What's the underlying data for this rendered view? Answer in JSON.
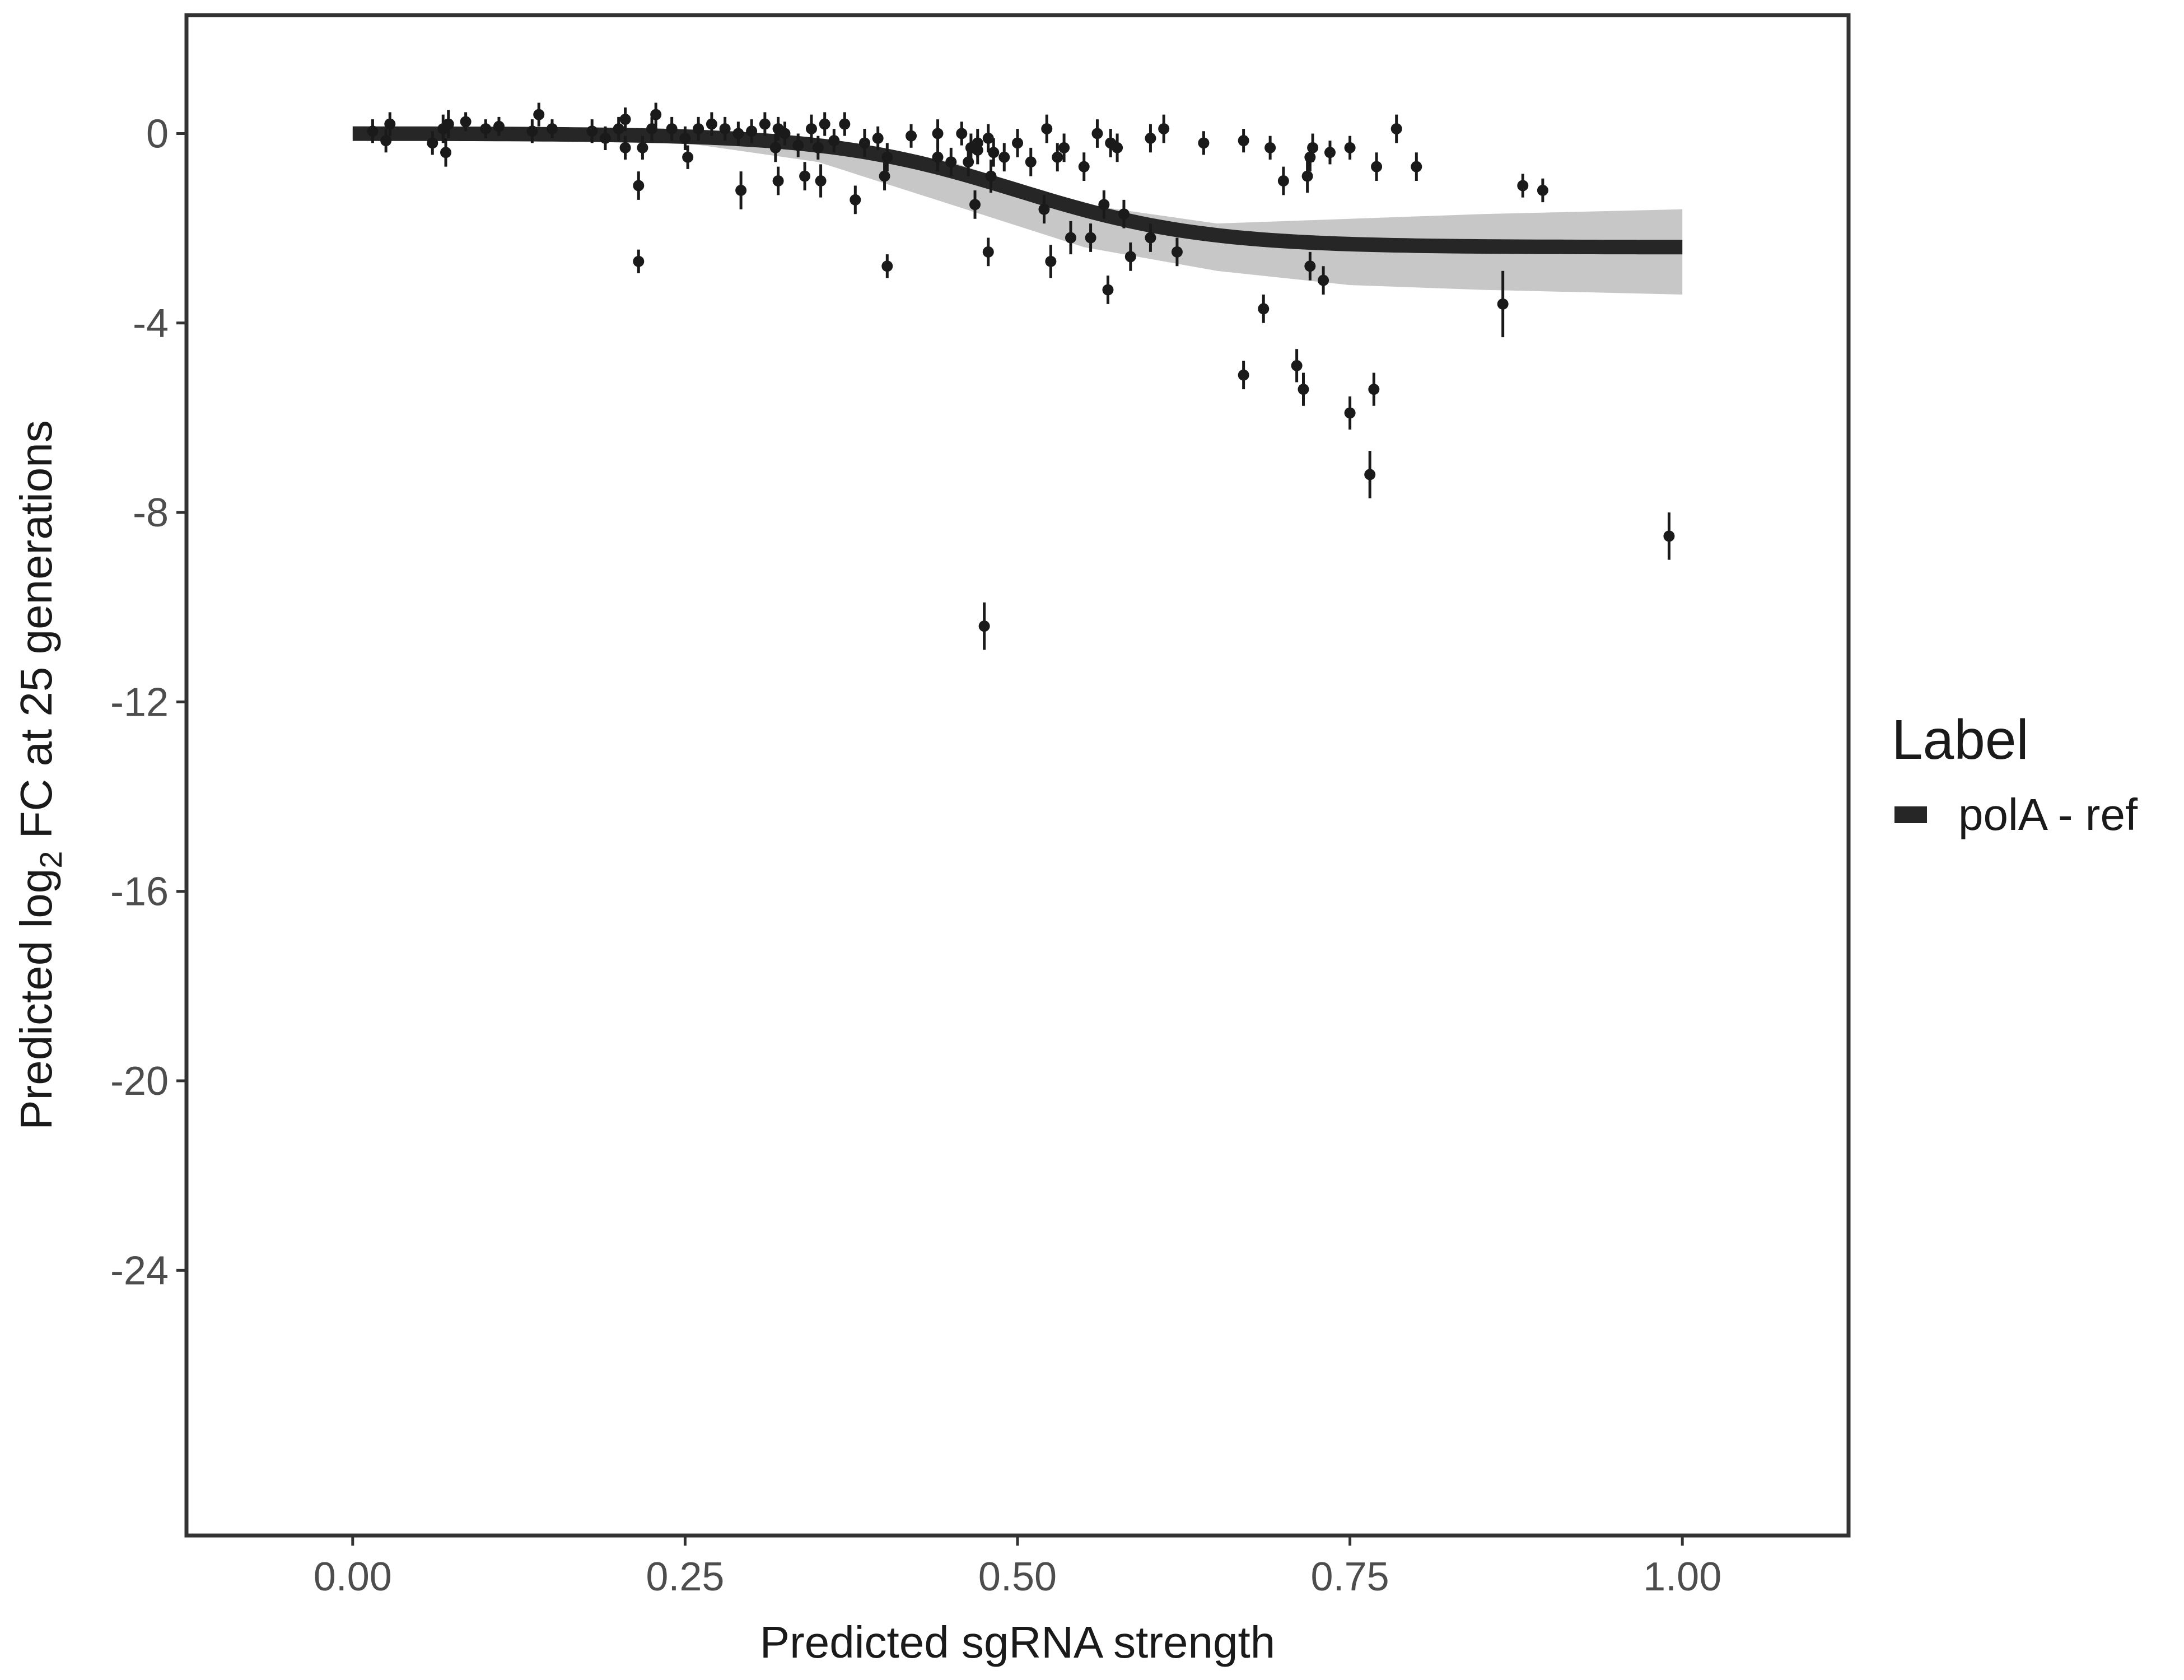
{
  "chart_data": {
    "type": "scatter",
    "xlabel": "Predicted sgRNA strength",
    "ylabel_prefix": "Predicted  log",
    "ylabel_sub": "2",
    "ylabel_suffix": " FC at 25 generations",
    "xlim": [
      -0.125,
      1.125
    ],
    "ylim": [
      -29.6,
      2.5
    ],
    "xticks": [
      0.0,
      0.25,
      0.5,
      0.75,
      1.0
    ],
    "xtick_labels": [
      "0.00",
      "0.25",
      "0.50",
      "0.75",
      "1.00"
    ],
    "yticks": [
      0,
      -4,
      -8,
      -12,
      -16,
      -20,
      -24
    ],
    "ytick_labels": [
      "0",
      "-4",
      "-8",
      "-12",
      "-16",
      "-20",
      "-24"
    ],
    "grid": false,
    "legend": {
      "position": "right",
      "title": "Label",
      "entries": [
        {
          "label": "polA - ref",
          "color": "#262626"
        }
      ]
    },
    "fit_line": {
      "name": "polA - ref",
      "color": "#262626",
      "model": "logistic",
      "x_range": [
        0.0,
        1.0
      ],
      "plateau": -2.4,
      "midpoint": 0.5,
      "scale": 0.07
    },
    "ribbon": {
      "color": "#999999",
      "x": [
        0.0,
        0.25,
        0.35,
        0.45,
        0.55,
        0.65,
        0.75,
        0.85,
        1.0
      ],
      "lower": [
        -0.1,
        -0.2,
        -0.6,
        -1.5,
        -2.4,
        -2.9,
        -3.2,
        -3.3,
        -3.4
      ],
      "upper": [
        0.1,
        0.1,
        -0.1,
        -0.6,
        -1.5,
        -1.9,
        -1.8,
        -1.7,
        -1.6
      ]
    },
    "points": [
      {
        "x": 0.015,
        "y": 0.05,
        "err": 0.25
      },
      {
        "x": 0.025,
        "y": -0.15,
        "err": 0.25
      },
      {
        "x": 0.028,
        "y": 0.2,
        "err": 0.25
      },
      {
        "x": 0.06,
        "y": -0.2,
        "err": 0.25
      },
      {
        "x": 0.068,
        "y": 0.1,
        "err": 0.3
      },
      {
        "x": 0.07,
        "y": -0.4,
        "err": 0.3
      },
      {
        "x": 0.072,
        "y": 0.2,
        "err": 0.3
      },
      {
        "x": 0.085,
        "y": 0.25,
        "err": 0.2
      },
      {
        "x": 0.1,
        "y": 0.1,
        "err": 0.2
      },
      {
        "x": 0.11,
        "y": 0.15,
        "err": 0.2
      },
      {
        "x": 0.135,
        "y": 0.05,
        "err": 0.25
      },
      {
        "x": 0.14,
        "y": 0.4,
        "err": 0.25
      },
      {
        "x": 0.15,
        "y": 0.1,
        "err": 0.2
      },
      {
        "x": 0.18,
        "y": 0.05,
        "err": 0.25
      },
      {
        "x": 0.19,
        "y": -0.1,
        "err": 0.25
      },
      {
        "x": 0.2,
        "y": 0.1,
        "err": 0.25
      },
      {
        "x": 0.205,
        "y": -0.3,
        "err": 0.25
      },
      {
        "x": 0.205,
        "y": 0.3,
        "err": 0.25
      },
      {
        "x": 0.215,
        "y": -1.1,
        "err": 0.3
      },
      {
        "x": 0.215,
        "y": -2.7,
        "err": 0.25
      },
      {
        "x": 0.218,
        "y": -0.3,
        "err": 0.25
      },
      {
        "x": 0.225,
        "y": 0.1,
        "err": 0.25
      },
      {
        "x": 0.228,
        "y": 0.4,
        "err": 0.25
      },
      {
        "x": 0.24,
        "y": 0.1,
        "err": 0.25
      },
      {
        "x": 0.25,
        "y": -0.1,
        "err": 0.25
      },
      {
        "x": 0.252,
        "y": -0.5,
        "err": 0.25
      },
      {
        "x": 0.26,
        "y": 0.1,
        "err": 0.25
      },
      {
        "x": 0.27,
        "y": 0.2,
        "err": 0.25
      },
      {
        "x": 0.28,
        "y": 0.1,
        "err": 0.25
      },
      {
        "x": 0.29,
        "y": 0.0,
        "err": 0.25
      },
      {
        "x": 0.292,
        "y": -1.2,
        "err": 0.4
      },
      {
        "x": 0.3,
        "y": 0.05,
        "err": 0.25
      },
      {
        "x": 0.31,
        "y": 0.2,
        "err": 0.25
      },
      {
        "x": 0.318,
        "y": -0.3,
        "err": 0.3
      },
      {
        "x": 0.32,
        "y": -1.0,
        "err": 0.3
      },
      {
        "x": 0.32,
        "y": 0.1,
        "err": 0.25
      },
      {
        "x": 0.325,
        "y": 0.0,
        "err": 0.25
      },
      {
        "x": 0.335,
        "y": -0.25,
        "err": 0.25
      },
      {
        "x": 0.34,
        "y": -0.9,
        "err": 0.3
      },
      {
        "x": 0.345,
        "y": 0.1,
        "err": 0.3
      },
      {
        "x": 0.35,
        "y": -0.3,
        "err": 0.25
      },
      {
        "x": 0.352,
        "y": -1.0,
        "err": 0.35
      },
      {
        "x": 0.355,
        "y": 0.2,
        "err": 0.25
      },
      {
        "x": 0.362,
        "y": -0.15,
        "err": 0.25
      },
      {
        "x": 0.37,
        "y": 0.2,
        "err": 0.25
      },
      {
        "x": 0.378,
        "y": -1.4,
        "err": 0.3
      },
      {
        "x": 0.385,
        "y": -0.2,
        "err": 0.3
      },
      {
        "x": 0.395,
        "y": -0.1,
        "err": 0.25
      },
      {
        "x": 0.4,
        "y": -0.9,
        "err": 0.3
      },
      {
        "x": 0.402,
        "y": -2.8,
        "err": 0.25
      },
      {
        "x": 0.402,
        "y": -0.5,
        "err": 0.3
      },
      {
        "x": 0.42,
        "y": -0.05,
        "err": 0.25
      },
      {
        "x": 0.44,
        "y": -0.5,
        "err": 0.3
      },
      {
        "x": 0.44,
        "y": 0.0,
        "err": 0.3
      },
      {
        "x": 0.45,
        "y": -0.6,
        "err": 0.3
      },
      {
        "x": 0.458,
        "y": 0.0,
        "err": 0.25
      },
      {
        "x": 0.463,
        "y": -0.6,
        "err": 0.3
      },
      {
        "x": 0.465,
        "y": -0.3,
        "err": 0.3
      },
      {
        "x": 0.468,
        "y": -1.5,
        "err": 0.3
      },
      {
        "x": 0.47,
        "y": -0.35,
        "err": 0.3
      },
      {
        "x": 0.47,
        "y": -0.2,
        "err": 0.3
      },
      {
        "x": 0.475,
        "y": -10.4,
        "err": 0.5
      },
      {
        "x": 0.478,
        "y": -2.5,
        "err": 0.3
      },
      {
        "x": 0.478,
        "y": -0.1,
        "err": 0.3
      },
      {
        "x": 0.48,
        "y": -0.9,
        "err": 0.35
      },
      {
        "x": 0.482,
        "y": -0.4,
        "err": 0.3
      },
      {
        "x": 0.49,
        "y": -0.5,
        "err": 0.3
      },
      {
        "x": 0.5,
        "y": -0.2,
        "err": 0.3
      },
      {
        "x": 0.51,
        "y": -0.6,
        "err": 0.3
      },
      {
        "x": 0.52,
        "y": -1.6,
        "err": 0.3
      },
      {
        "x": 0.522,
        "y": 0.1,
        "err": 0.3
      },
      {
        "x": 0.525,
        "y": -2.7,
        "err": 0.35
      },
      {
        "x": 0.53,
        "y": -0.5,
        "err": 0.3
      },
      {
        "x": 0.535,
        "y": -0.3,
        "err": 0.3
      },
      {
        "x": 0.54,
        "y": -2.2,
        "err": 0.35
      },
      {
        "x": 0.55,
        "y": -0.7,
        "err": 0.3
      },
      {
        "x": 0.555,
        "y": -2.2,
        "err": 0.3
      },
      {
        "x": 0.56,
        "y": 0.0,
        "err": 0.3
      },
      {
        "x": 0.565,
        "y": -1.5,
        "err": 0.3
      },
      {
        "x": 0.568,
        "y": -3.3,
        "err": 0.3
      },
      {
        "x": 0.57,
        "y": -0.2,
        "err": 0.3
      },
      {
        "x": 0.575,
        "y": -0.3,
        "err": 0.3
      },
      {
        "x": 0.58,
        "y": -1.7,
        "err": 0.3
      },
      {
        "x": 0.585,
        "y": -2.6,
        "err": 0.3
      },
      {
        "x": 0.6,
        "y": -2.2,
        "err": 0.3
      },
      {
        "x": 0.6,
        "y": -0.1,
        "err": 0.3
      },
      {
        "x": 0.61,
        "y": 0.1,
        "err": 0.3
      },
      {
        "x": 0.62,
        "y": -2.5,
        "err": 0.3
      },
      {
        "x": 0.64,
        "y": -0.2,
        "err": 0.25
      },
      {
        "x": 0.67,
        "y": -0.15,
        "err": 0.25
      },
      {
        "x": 0.67,
        "y": -5.1,
        "err": 0.3
      },
      {
        "x": 0.685,
        "y": -3.7,
        "err": 0.3
      },
      {
        "x": 0.69,
        "y": -0.3,
        "err": 0.25
      },
      {
        "x": 0.7,
        "y": -1.0,
        "err": 0.3
      },
      {
        "x": 0.71,
        "y": -4.9,
        "err": 0.35
      },
      {
        "x": 0.715,
        "y": -5.4,
        "err": 0.35
      },
      {
        "x": 0.718,
        "y": -0.9,
        "err": 0.35
      },
      {
        "x": 0.72,
        "y": -2.8,
        "err": 0.3
      },
      {
        "x": 0.72,
        "y": -0.5,
        "err": 0.3
      },
      {
        "x": 0.722,
        "y": -0.3,
        "err": 0.3
      },
      {
        "x": 0.73,
        "y": -3.1,
        "err": 0.3
      },
      {
        "x": 0.735,
        "y": -0.4,
        "err": 0.25
      },
      {
        "x": 0.75,
        "y": -0.3,
        "err": 0.25
      },
      {
        "x": 0.75,
        "y": -5.9,
        "err": 0.35
      },
      {
        "x": 0.765,
        "y": -7.2,
        "err": 0.5
      },
      {
        "x": 0.768,
        "y": -5.4,
        "err": 0.35
      },
      {
        "x": 0.77,
        "y": -0.7,
        "err": 0.3
      },
      {
        "x": 0.785,
        "y": 0.1,
        "err": 0.3
      },
      {
        "x": 0.8,
        "y": -0.7,
        "err": 0.3
      },
      {
        "x": 0.865,
        "y": -3.6,
        "err": 0.7
      },
      {
        "x": 0.88,
        "y": -1.1,
        "err": 0.25
      },
      {
        "x": 0.895,
        "y": -1.2,
        "err": 0.25
      },
      {
        "x": 0.99,
        "y": -8.5,
        "err": 0.5
      }
    ]
  }
}
